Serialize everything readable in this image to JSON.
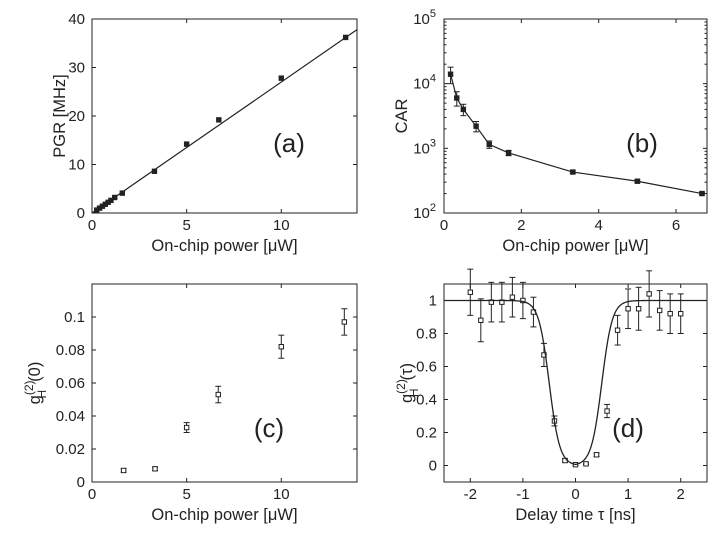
{
  "chart_data": [
    {
      "id": "a",
      "type": "scatter",
      "panel_label": "(a)",
      "xlabel": "On-chip power [μW]",
      "ylabel": "PGR [MHz]",
      "xlim": [
        0,
        14
      ],
      "ylim": [
        0,
        40
      ],
      "xscale": "linear",
      "yscale": "linear",
      "xticks": [
        "0",
        "5",
        "10"
      ],
      "xtick_values": [
        0,
        5,
        10
      ],
      "yticks": [
        "0",
        "10",
        "20",
        "30",
        "40"
      ],
      "ytick_values": [
        0,
        10,
        20,
        30,
        40
      ],
      "grid": false,
      "series": [
        {
          "kind": "points",
          "x": [
            0.25,
            0.4,
            0.55,
            0.7,
            0.85,
            1.0,
            1.2,
            1.6,
            3.3,
            5.0,
            6.7,
            10.0,
            13.4
          ],
          "y": [
            0.6,
            1.0,
            1.4,
            1.8,
            2.2,
            2.6,
            3.2,
            4.1,
            8.6,
            14.2,
            19.2,
            27.8,
            36.2
          ]
        },
        {
          "kind": "fit",
          "x": [
            0,
            14
          ],
          "y": [
            0,
            37.8
          ]
        }
      ]
    },
    {
      "id": "b",
      "type": "line",
      "panel_label": "(b)",
      "xlabel": "On-chip power [μW]",
      "ylabel": "CAR",
      "xlim": [
        0,
        6.8
      ],
      "ylim": [
        100,
        100000
      ],
      "xscale": "linear",
      "yscale": "log",
      "xticks": [
        "0",
        "2",
        "4",
        "6"
      ],
      "xtick_values": [
        0,
        2,
        4,
        6
      ],
      "yticks": [
        "10^2",
        "10^3",
        "10^4",
        "10^5"
      ],
      "ytick_values": [
        100,
        1000,
        10000,
        100000
      ],
      "grid": false,
      "series": [
        {
          "kind": "points_with_error_and_line",
          "x": [
            0.17,
            0.33,
            0.5,
            0.83,
            1.17,
            1.67,
            3.33,
            5.0,
            6.67
          ],
          "y": [
            14000,
            6000,
            4000,
            2200,
            1150,
            850,
            430,
            310,
            200
          ],
          "err": [
            4000,
            1500,
            800,
            400,
            150,
            80,
            20,
            15,
            10
          ]
        }
      ]
    },
    {
      "id": "c",
      "type": "scatter",
      "panel_label": "(c)",
      "xlabel": "On-chip power [μW]",
      "ylabel": "g_H^(2)(0)",
      "xlim": [
        0,
        14
      ],
      "ylim": [
        0,
        0.12
      ],
      "xscale": "linear",
      "yscale": "linear",
      "xticks": [
        "0",
        "5",
        "10"
      ],
      "xtick_values": [
        0,
        5,
        10
      ],
      "yticks": [
        "0",
        "0.02",
        "0.04",
        "0.06",
        "0.08",
        "0.1"
      ],
      "ytick_values": [
        0,
        0.02,
        0.04,
        0.06,
        0.08,
        0.1
      ],
      "grid": false,
      "series": [
        {
          "kind": "points_with_error",
          "x": [
            1.67,
            3.33,
            5.0,
            6.67,
            10.0,
            13.33
          ],
          "y": [
            0.007,
            0.008,
            0.033,
            0.053,
            0.082,
            0.097
          ],
          "err": [
            0.001,
            0.001,
            0.003,
            0.005,
            0.007,
            0.008
          ]
        }
      ]
    },
    {
      "id": "d",
      "type": "scatter",
      "panel_label": "(d)",
      "xlabel": "Delay time τ [ns]",
      "ylabel": "g_H^(2)(τ)",
      "xlim": [
        -2.5,
        2.5
      ],
      "ylim": [
        -0.1,
        1.1
      ],
      "xscale": "linear",
      "yscale": "linear",
      "xticks": [
        "-2",
        "-1",
        "0",
        "1",
        "2"
      ],
      "xtick_values": [
        -2,
        -1,
        0,
        1,
        2
      ],
      "yticks": [
        "0",
        "0.2",
        "0.4",
        "0.6",
        "0.8",
        "1"
      ],
      "ytick_values": [
        0,
        0.2,
        0.4,
        0.6,
        0.8,
        1
      ],
      "grid": false,
      "series": [
        {
          "kind": "points_with_error",
          "x": [
            -2.0,
            -1.8,
            -1.6,
            -1.4,
            -1.2,
            -1.0,
            -0.8,
            -0.6,
            -0.4,
            -0.2,
            0.0,
            0.2,
            0.4,
            0.6,
            0.8,
            1.0,
            1.2,
            1.4,
            1.6,
            1.8,
            2.0
          ],
          "y": [
            1.05,
            0.88,
            0.99,
            0.99,
            1.02,
            1.0,
            0.93,
            0.67,
            0.27,
            0.03,
            0.005,
            0.01,
            0.065,
            0.33,
            0.82,
            0.95,
            0.95,
            1.04,
            0.94,
            0.92,
            0.92
          ],
          "err": [
            0.14,
            0.13,
            0.12,
            0.12,
            0.12,
            0.11,
            0.09,
            0.07,
            0.03,
            0.01,
            0.005,
            0.005,
            0.01,
            0.04,
            0.09,
            0.12,
            0.13,
            0.14,
            0.12,
            0.12,
            0.12
          ]
        },
        {
          "kind": "fit",
          "model": "dip",
          "center": 0,
          "half_width": 0.5,
          "edge": 0.1,
          "baseline": 1.0
        }
      ]
    }
  ]
}
